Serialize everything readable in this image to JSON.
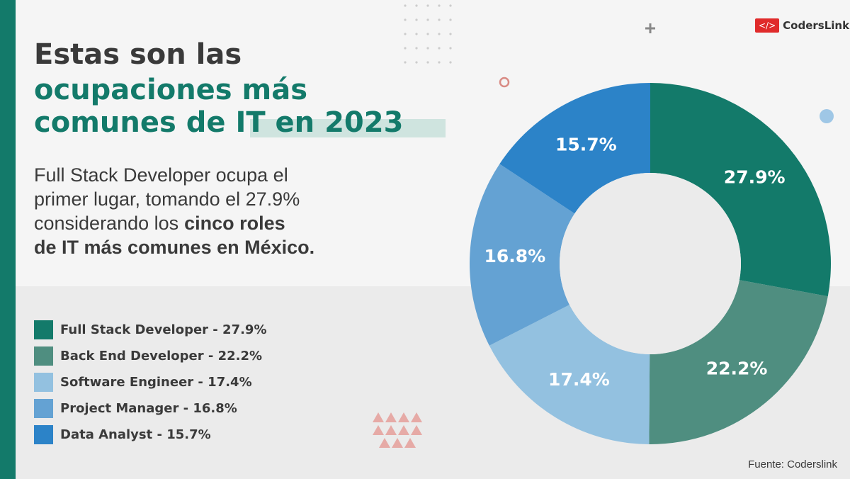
{
  "logo_icon": "</>",
  "logo": "CodersLink",
  "chart_data": {
    "type": "donut",
    "title": [
      "Estas son las",
      "ocupaciones más",
      "comunes de",
      "IT en 2023"
    ],
    "subtitle": [
      "Full Stack Developer ocupa el",
      "primer lugar, tomando el 27.9%",
      "considerando los",
      "cinco roles",
      "de IT más comunes en México."
    ],
    "categories": [
      "Full Stack Developer - 27.9%",
      "Back End Developer - 22.2%",
      "Software Engineer - 17.4%",
      "Project Manager - 16.8%",
      "Data Analyst - 15.7%"
    ],
    "values": [
      27.9,
      22.2,
      17.4,
      16.8,
      15.7
    ],
    "value_labels": [
      "27.9%",
      "22.2%",
      "17.4%",
      "16.8%",
      "15.7%"
    ],
    "colors": [
      "#137a6a",
      "#4f8e80",
      "#93c1e0",
      "#64a2d3",
      "#2c83c8"
    ],
    "source": "Fuente: Coderslink"
  }
}
